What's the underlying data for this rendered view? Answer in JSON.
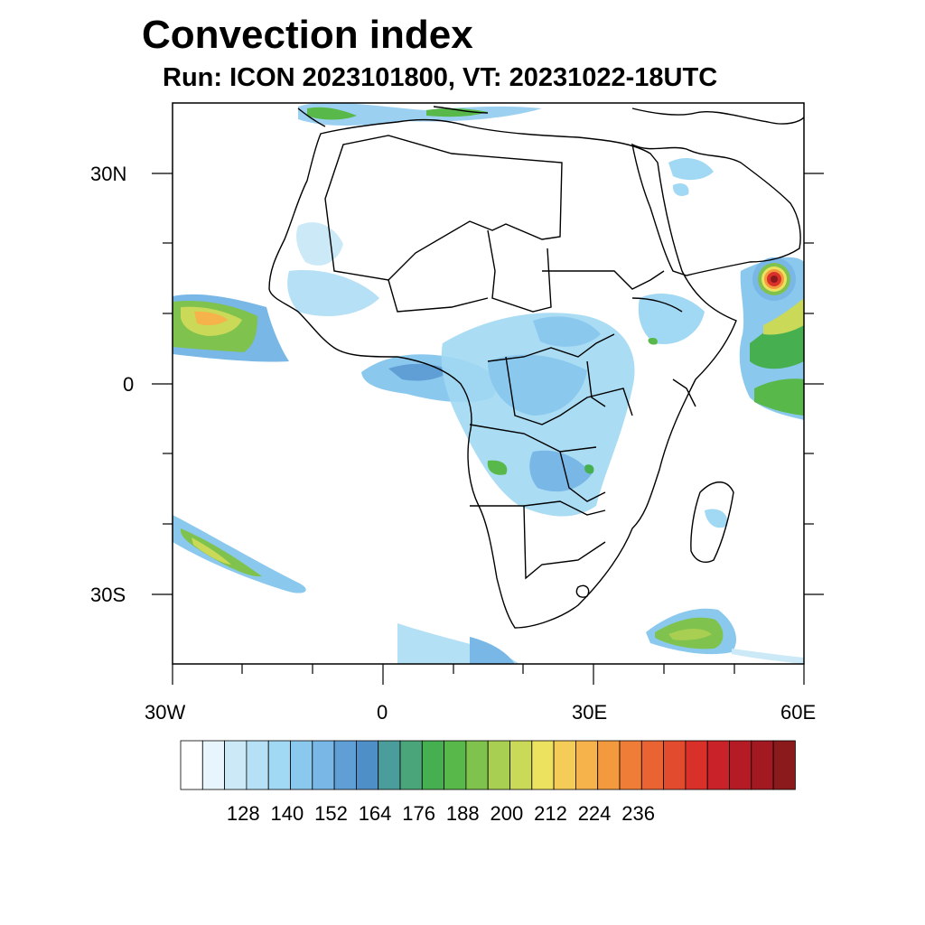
{
  "map": {
    "title": "Convection index",
    "subtitle": "Run: ICON 2023101800,  VT: 20231022-18UTC",
    "lat_labels": [
      "30N",
      "0",
      "30S"
    ],
    "lon_labels": [
      "30W",
      "0",
      "30E",
      "60E"
    ],
    "extent": {
      "lon_min": -30,
      "lon_max": 60,
      "lat_min": -40,
      "lat_max": 40
    }
  },
  "colorbar": {
    "colors": [
      "#ffffff",
      "#e8f5fc",
      "#cbe9f7",
      "#b6e0f5",
      "#a1d8f3",
      "#8bc8ee",
      "#79b7e6",
      "#5f9fd6",
      "#4f8fc8",
      "#4a9d9a",
      "#4aa67a",
      "#46b050",
      "#58b84a",
      "#7fc24e",
      "#a9cf52",
      "#cad957",
      "#ede160",
      "#f6cc58",
      "#f6b24b",
      "#f39a3f",
      "#ef7d37",
      "#ea6332",
      "#e24b2d",
      "#d9302a",
      "#c92228",
      "#b51b25",
      "#a21922",
      "#8b1a1c"
    ],
    "labels": [
      "128",
      "140",
      "152",
      "164",
      "176",
      "188",
      "200",
      "212",
      "224",
      "236"
    ]
  }
}
